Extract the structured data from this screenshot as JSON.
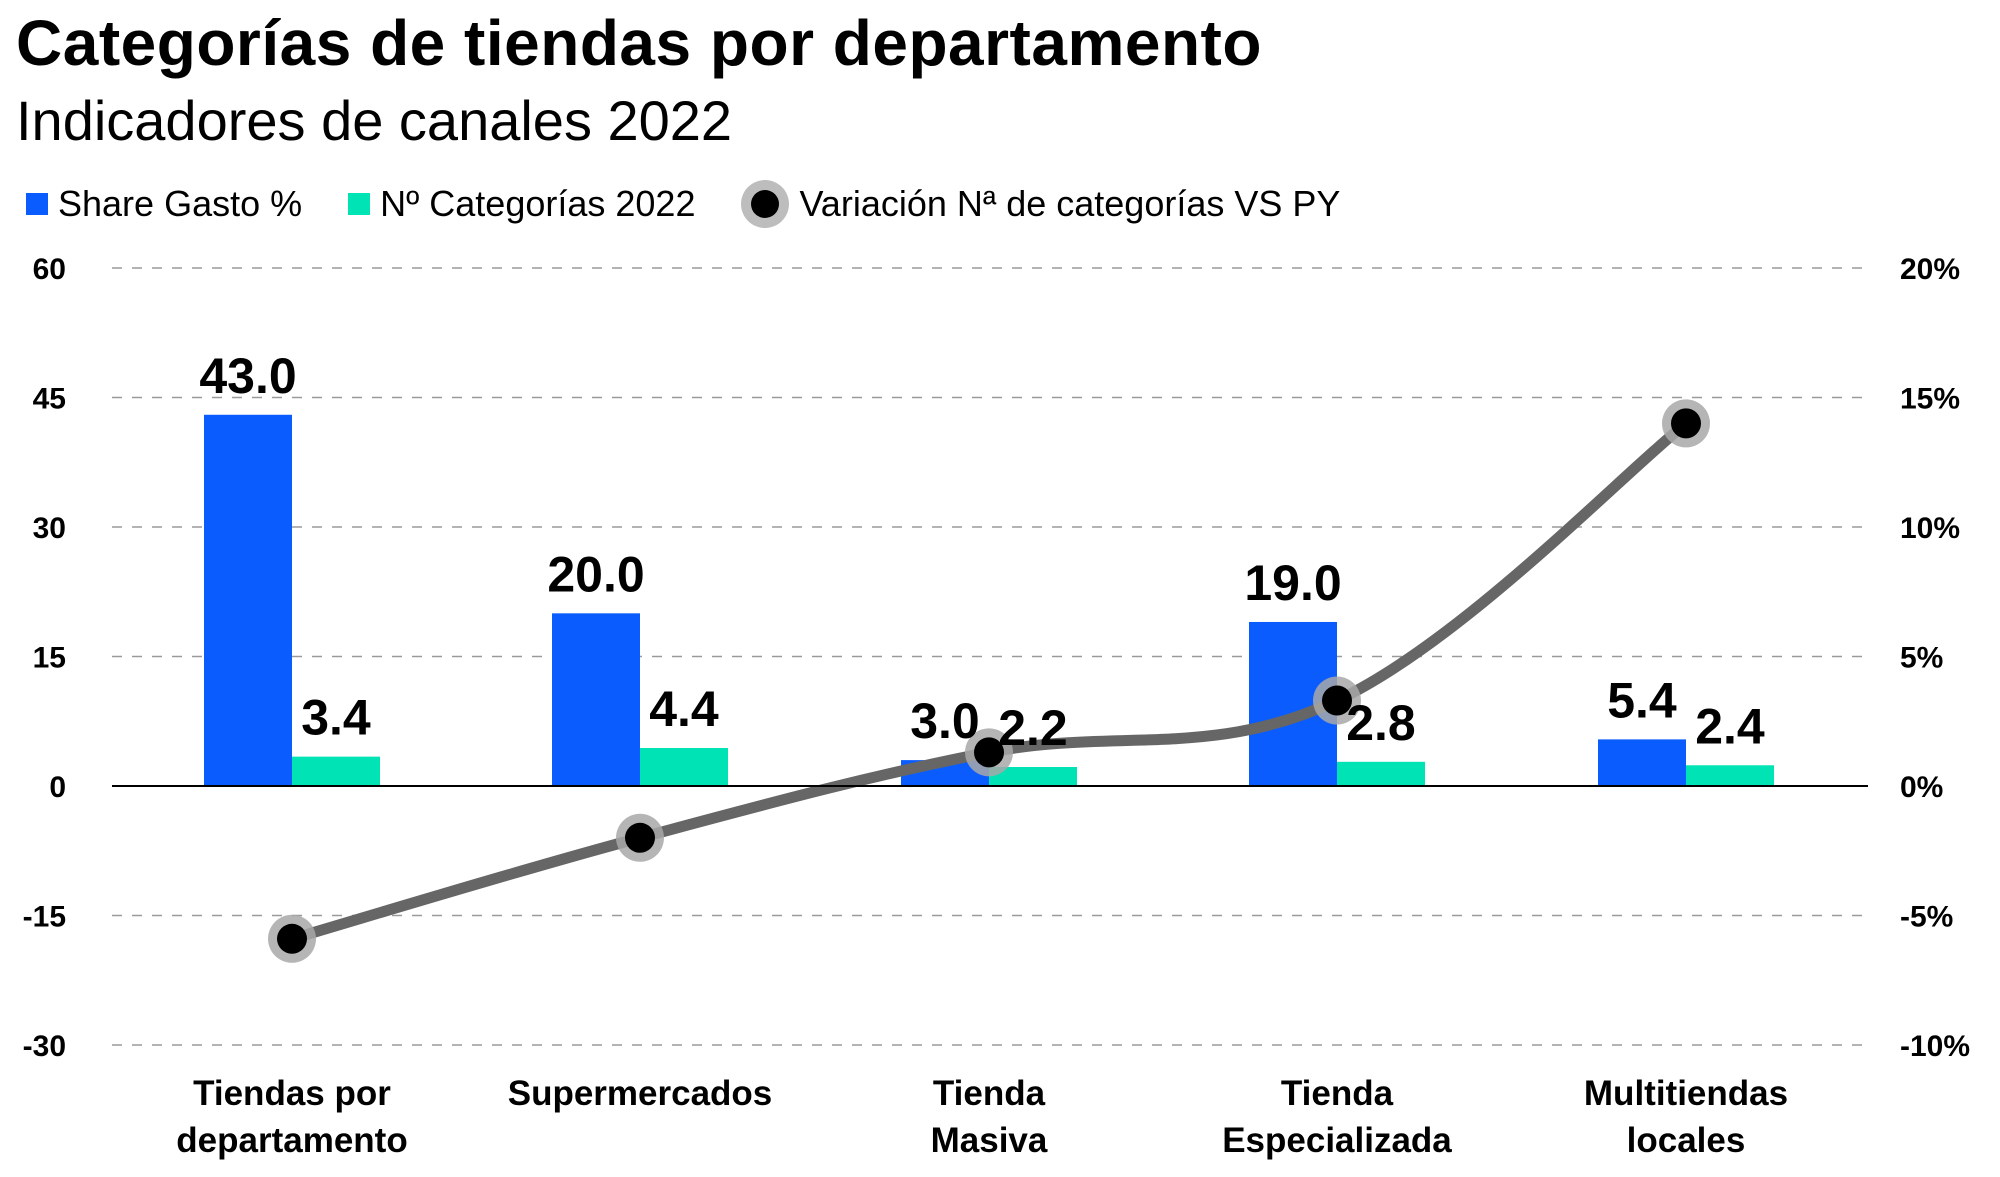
{
  "title": "Categorías de tiendas por departamento",
  "subtitle": "Indicadores de canales 2022",
  "chart_data": {
    "type": "bar",
    "title": "Categorías de tiendas por departamento",
    "subtitle": "Indicadores de canales 2022",
    "categories": [
      [
        "Tiendas por",
        "departamento"
      ],
      [
        "Supermercados"
      ],
      [
        "Tienda",
        "Masiva"
      ],
      [
        "Tienda",
        "Especializada"
      ],
      [
        "Multitiendas",
        "locales"
      ]
    ],
    "series": [
      {
        "name": "Share Gasto %",
        "type": "bar",
        "axis": "left",
        "color": "#0a5cff",
        "values": [
          43.0,
          20.0,
          3.0,
          19.0,
          5.4
        ],
        "labels": [
          "43.0",
          "20.0",
          "3.0",
          "19.0",
          "5.4"
        ]
      },
      {
        "name": "Nº Categorías 2022",
        "type": "bar",
        "axis": "left",
        "color": "#00e3b4",
        "values": [
          3.4,
          4.4,
          2.2,
          2.8,
          2.4
        ],
        "labels": [
          "3.4",
          "4.4",
          "2.2",
          "2.8",
          "2.4"
        ]
      },
      {
        "name": "Variación Nª de categorías VS PY",
        "type": "line",
        "axis": "right",
        "color": "#000000",
        "line_color": "#666666",
        "values": [
          -5.9,
          -2.0,
          1.3,
          3.3,
          14.0
        ]
      }
    ],
    "left_axis": {
      "range": [
        -30,
        60
      ],
      "ticks": [
        "60",
        "45",
        "30",
        "15",
        "0",
        "-15",
        "-30"
      ]
    },
    "right_axis": {
      "range": [
        -10,
        20
      ],
      "ticks": [
        "20%",
        "15%",
        "10%",
        "5%",
        "0%",
        "-5%",
        "-10%"
      ]
    },
    "grid": "dashed horizontal",
    "legend_position": "top-left"
  }
}
